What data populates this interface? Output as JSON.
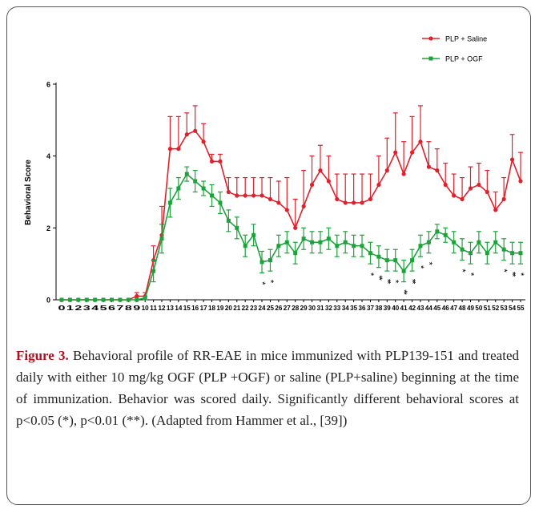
{
  "chart_data": {
    "type": "line",
    "ylabel": "Behavioral Score",
    "x": [
      0,
      1,
      2,
      3,
      4,
      5,
      6,
      7,
      8,
      9,
      10,
      11,
      12,
      13,
      14,
      15,
      16,
      17,
      18,
      19,
      20,
      21,
      22,
      23,
      24,
      25,
      26,
      27,
      28,
      29,
      30,
      31,
      32,
      33,
      34,
      35,
      36,
      37,
      38,
      39,
      40,
      41,
      42,
      43,
      44,
      45,
      46,
      47,
      48,
      49,
      50,
      51,
      52,
      53,
      54,
      55
    ],
    "xticks": [
      0,
      1,
      2,
      3,
      4,
      5,
      6,
      7,
      8,
      9,
      10,
      11,
      12,
      13,
      14,
      15,
      16,
      17,
      18,
      19,
      20,
      21,
      22,
      23,
      24,
      25,
      26,
      27,
      28,
      29,
      30,
      31,
      32,
      33,
      34,
      35,
      36,
      37,
      38,
      39,
      40,
      41,
      42,
      43,
      44,
      45,
      46,
      47,
      48,
      49,
      50,
      51,
      52,
      53,
      54,
      55
    ],
    "xlim": [
      0,
      55
    ],
    "ylim": [
      0,
      6
    ],
    "yticks": [
      0,
      2,
      4,
      6
    ],
    "legend": "upper right",
    "series": [
      {
        "name": "PLP + Saline",
        "color": "#e0202a",
        "marker": "circle",
        "error_bars": "up",
        "values": [
          0,
          0,
          0,
          0,
          0,
          0,
          0,
          0,
          0,
          0.1,
          0.1,
          1.1,
          1.8,
          4.2,
          4.2,
          4.6,
          4.7,
          4.4,
          3.85,
          3.85,
          3.0,
          2.9,
          2.9,
          2.9,
          2.9,
          2.8,
          2.7,
          2.5,
          2.0,
          2.6,
          3.2,
          3.6,
          3.3,
          2.8,
          2.7,
          2.7,
          2.7,
          2.8,
          3.2,
          3.6,
          4.1,
          3.5,
          4.1,
          4.4,
          3.7,
          3.6,
          3.2,
          2.9,
          2.8,
          3.1,
          3.2,
          3.0,
          2.5,
          2.8,
          3.9,
          3.3
        ],
        "errors": [
          0,
          0,
          0,
          0,
          0,
          0,
          0,
          0,
          0,
          0.1,
          0.1,
          0.4,
          0.8,
          0.9,
          0.9,
          0.6,
          0.7,
          0.5,
          0.2,
          0.2,
          0.4,
          0.5,
          0.5,
          0.5,
          0.5,
          0.6,
          0.6,
          0.9,
          0.8,
          1.0,
          0.8,
          0.7,
          0.7,
          0.7,
          0.8,
          0.8,
          0.8,
          0.7,
          0.8,
          0.9,
          1.1,
          0.9,
          1.0,
          1.0,
          0.7,
          0.6,
          0.6,
          0.6,
          0.6,
          0.6,
          0.6,
          0.6,
          0.5,
          0.6,
          0.7,
          0.8
        ]
      },
      {
        "name": "PLP + OGF",
        "color": "#1ea23c",
        "marker": "square",
        "error_bars": "both",
        "values": [
          0,
          0,
          0,
          0,
          0,
          0,
          0,
          0,
          0,
          0,
          0.05,
          0.8,
          1.7,
          2.7,
          3.1,
          3.5,
          3.3,
          3.1,
          2.9,
          2.7,
          2.2,
          2.0,
          1.5,
          1.8,
          1.05,
          1.1,
          1.5,
          1.6,
          1.3,
          1.7,
          1.6,
          1.6,
          1.7,
          1.5,
          1.6,
          1.5,
          1.5,
          1.3,
          1.2,
          1.1,
          1.1,
          0.8,
          1.1,
          1.5,
          1.6,
          1.9,
          1.8,
          1.6,
          1.4,
          1.3,
          1.6,
          1.3,
          1.6,
          1.4,
          1.3,
          1.3
        ],
        "errors": [
          0,
          0,
          0,
          0,
          0,
          0,
          0,
          0,
          0,
          0,
          0.05,
          0.3,
          0.4,
          0.4,
          0.3,
          0.2,
          0.3,
          0.2,
          0.3,
          0.3,
          0.3,
          0.3,
          0.3,
          0.3,
          0.3,
          0.3,
          0.3,
          0.3,
          0.3,
          0.3,
          0.3,
          0.3,
          0.3,
          0.3,
          0.3,
          0.3,
          0.3,
          0.3,
          0.3,
          0.3,
          0.3,
          0.3,
          0.3,
          0.3,
          0.3,
          0.2,
          0.2,
          0.3,
          0.3,
          0.3,
          0.3,
          0.3,
          0.3,
          0.3,
          0.3,
          0.3
        ]
      }
    ],
    "annotations": [
      {
        "x": 24,
        "text": "*"
      },
      {
        "x": 25,
        "text": "*"
      },
      {
        "x": 37,
        "text": "*"
      },
      {
        "x": 38,
        "text": "**"
      },
      {
        "x": 39,
        "text": "**"
      },
      {
        "x": 40,
        "text": "*"
      },
      {
        "x": 41,
        "text": "**"
      },
      {
        "x": 42,
        "text": "**"
      },
      {
        "x": 43,
        "text": "*"
      },
      {
        "x": 44,
        "text": "*"
      },
      {
        "x": 48,
        "text": "*"
      },
      {
        "x": 49,
        "text": "*"
      },
      {
        "x": 53,
        "text": "*"
      },
      {
        "x": 54,
        "text": "**"
      },
      {
        "x": 55,
        "text": "*"
      }
    ]
  },
  "caption": {
    "label": "Figure 3.",
    "text": "Behavioral profile of RR-EAE in mice immunized with PLP139-151 and treated daily with either 10 mg/kg OGF (PLP +OGF) or saline (PLP+saline) beginning at the time of immunization. Behavior was scored daily. Significantly different behavioral scores at p<0.05 (*), p<0.01 (**). (Adapted from Hammer et al., [39])"
  }
}
